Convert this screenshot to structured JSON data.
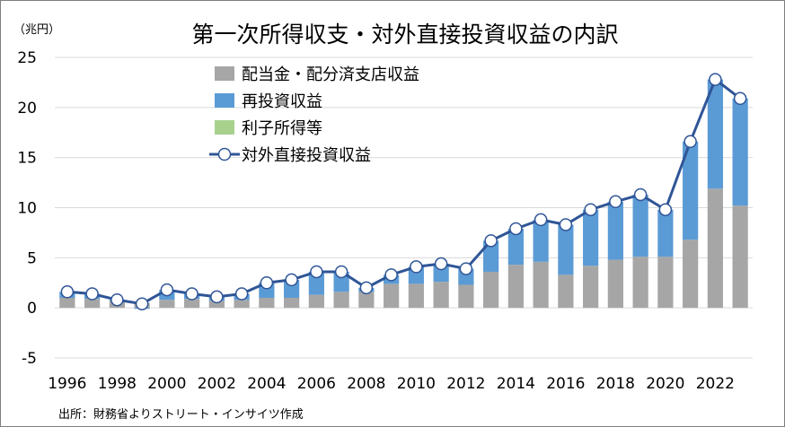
{
  "chart_data": {
    "type": "bar",
    "title": "第一次所得収支・対外直接投資収益の内訳",
    "unit": "（兆円）",
    "source": "出所：財務省よりストリート・インサイツ作成",
    "x": [
      1996,
      1997,
      1998,
      1999,
      2000,
      2001,
      2002,
      2003,
      2004,
      2005,
      2006,
      2007,
      2008,
      2009,
      2010,
      2011,
      2012,
      2013,
      2014,
      2015,
      2016,
      2017,
      2018,
      2019,
      2020,
      2021,
      2022,
      2023
    ],
    "x_tick_labels": [
      "1996",
      "1998",
      "2000",
      "2002",
      "2004",
      "2006",
      "2008",
      "2010",
      "2012",
      "2014",
      "2016",
      "2018",
      "2020",
      "2022"
    ],
    "ylim": [
      -5,
      25
    ],
    "yticks": [
      -5,
      0,
      5,
      10,
      15,
      20,
      25
    ],
    "stacked": true,
    "series": [
      {
        "name": "配当金・配分済支店収益",
        "kind": "bar",
        "color": "#a6a6a6",
        "values": [
          1.0,
          0.9,
          0.7,
          0.5,
          0.8,
          0.9,
          0.7,
          0.8,
          1.0,
          1.0,
          1.3,
          1.6,
          1.6,
          2.4,
          2.4,
          2.6,
          2.3,
          3.6,
          4.3,
          4.6,
          3.3,
          4.2,
          4.8,
          5.1,
          5.1,
          6.8,
          11.9,
          10.2
        ]
      },
      {
        "name": "再投資収益",
        "kind": "bar",
        "color": "#5b9bd5",
        "values": [
          0.6,
          0.5,
          0.1,
          -0.1,
          1.0,
          0.5,
          0.4,
          0.6,
          1.5,
          1.8,
          2.3,
          2.0,
          0.4,
          0.9,
          1.7,
          1.8,
          1.6,
          3.1,
          3.6,
          4.2,
          5.0,
          5.6,
          5.8,
          6.2,
          4.7,
          9.8,
          10.9,
          10.7
        ]
      },
      {
        "name": "利子所得等",
        "kind": "bar",
        "color": "#a9d18e",
        "values": [
          0,
          0,
          0,
          0,
          0,
          0,
          0,
          0,
          0,
          0,
          0,
          0,
          0,
          0,
          0,
          0,
          0,
          0,
          0,
          0,
          0,
          0,
          0,
          0,
          0,
          0,
          0,
          0
        ]
      },
      {
        "name": "対外直接投資収益",
        "kind": "line",
        "color": "#2f5597",
        "values": [
          1.6,
          1.4,
          0.8,
          0.4,
          1.8,
          1.4,
          1.1,
          1.4,
          2.5,
          2.8,
          3.6,
          3.6,
          2.0,
          3.3,
          4.1,
          4.4,
          3.9,
          6.7,
          7.9,
          8.8,
          8.3,
          9.8,
          10.6,
          11.3,
          9.8,
          16.6,
          22.8,
          20.9
        ]
      }
    ],
    "legend_position": "top-center"
  }
}
